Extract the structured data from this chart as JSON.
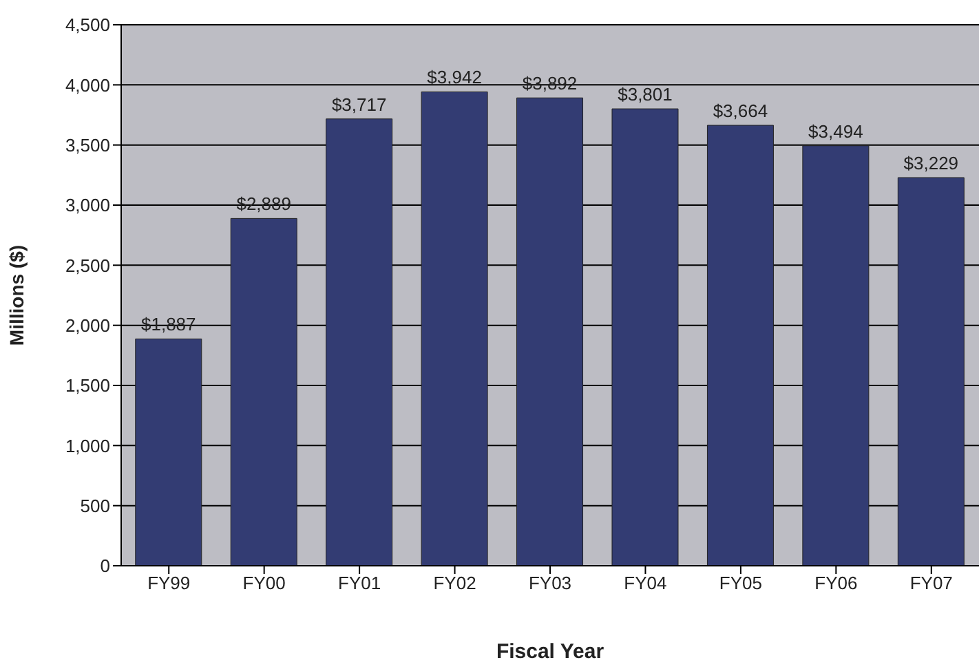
{
  "chart_data": {
    "type": "bar",
    "xlabel": "Fiscal Year",
    "ylabel": "Millions ($)",
    "categories": [
      "FY99",
      "FY00",
      "FY01",
      "FY02",
      "FY03",
      "FY04",
      "FY05",
      "FY06",
      "FY07"
    ],
    "values": [
      1887,
      2889,
      3717,
      3942,
      3892,
      3801,
      3664,
      3494,
      3229
    ],
    "value_labels": [
      "$1,887",
      "$2,889",
      "$3,717",
      "$3,942",
      "$3,892",
      "$3,801",
      "$3,664",
      "$3,494",
      "$3,229"
    ],
    "color": "#333c73",
    "ylim": [
      0,
      4500
    ],
    "yticks": [
      0,
      500,
      {
        "value": 1000,
        "label": "1,000"
      },
      {
        "value": 1500,
        "label": "1,500"
      },
      {
        "value": 2000,
        "label": "2,000"
      },
      {
        "value": 2500,
        "label": "2,500"
      },
      {
        "value": 3000,
        "label": "3,000"
      },
      {
        "value": 3500,
        "label": "3,500"
      },
      {
        "value": 4000,
        "label": "4,000"
      },
      {
        "value": 4500,
        "label": "4,500"
      }
    ],
    "grid": "y",
    "legend": false
  }
}
